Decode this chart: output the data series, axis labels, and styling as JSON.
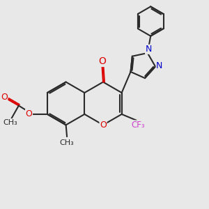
{
  "bg_color": "#e8e8e8",
  "bond_color": "#2a2a2a",
  "lw": 1.5,
  "red": "#dd0000",
  "blue": "#0000cc",
  "magenta": "#cc44cc",
  "dark": "#2a2a2a",
  "fig_w": 3.0,
  "fig_h": 3.0,
  "dpi": 100,
  "xlim": [
    0,
    10
  ],
  "ylim": [
    0,
    10
  ]
}
